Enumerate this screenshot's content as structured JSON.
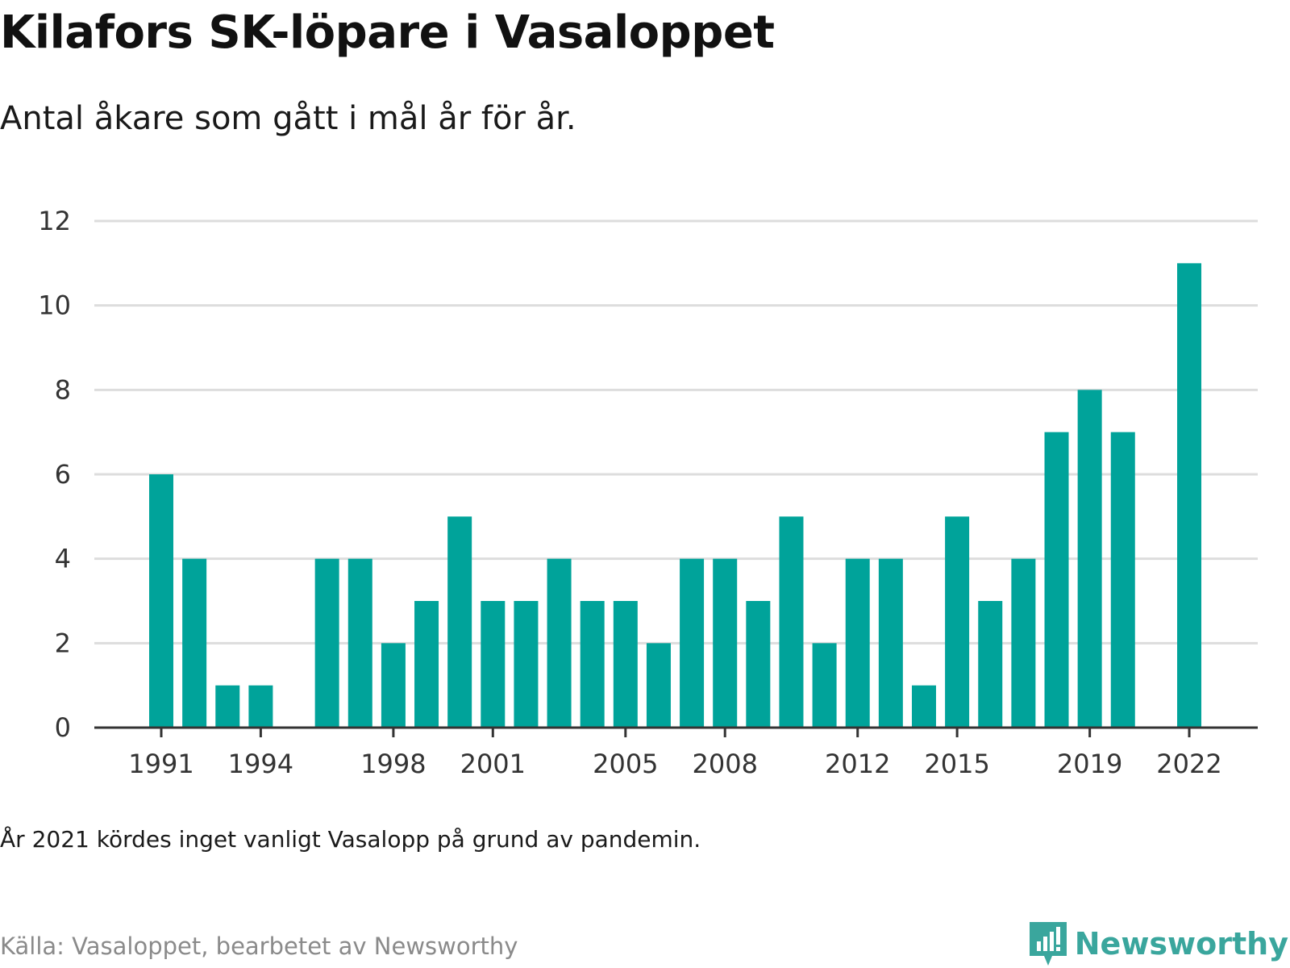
{
  "header": {
    "title": "Kilafors SK-löpare i Vasaloppet",
    "subtitle": "Antal åkare som gått i mål år för år."
  },
  "footer": {
    "note": "År 2021 kördes inget vanligt Vasalopp på grund av pandemin.",
    "source": "Källa: Vasaloppet, bearbetet av Newsworthy",
    "logo_text": "Newsworthy"
  },
  "colors": {
    "bar": "#00a39a",
    "grid": "#dddddd",
    "axis": "#333333",
    "logo": "#3aa69d"
  },
  "icons": {
    "logo": "bar-chart-speech-bubble-icon"
  },
  "chart_data": {
    "type": "bar",
    "title": "",
    "xlabel": "",
    "ylabel": "",
    "ylim": [
      0,
      12
    ],
    "yticks": [
      0,
      2,
      4,
      6,
      8,
      10,
      12
    ],
    "xticks": [
      "1991",
      "1994",
      "1998",
      "2001",
      "2005",
      "2008",
      "2012",
      "2015",
      "2019",
      "2022"
    ],
    "grid": true,
    "categories": [
      1991,
      1992,
      1993,
      1994,
      1995,
      1996,
      1997,
      1998,
      1999,
      2000,
      2001,
      2002,
      2003,
      2004,
      2005,
      2006,
      2007,
      2008,
      2009,
      2010,
      2011,
      2012,
      2013,
      2014,
      2015,
      2016,
      2017,
      2018,
      2019,
      2020,
      2021,
      2022
    ],
    "values": [
      6,
      4,
      1,
      1,
      0,
      4,
      4,
      2,
      3,
      5,
      3,
      3,
      4,
      3,
      3,
      2,
      4,
      4,
      3,
      5,
      2,
      4,
      4,
      1,
      5,
      3,
      4,
      7,
      8,
      7,
      0,
      11
    ]
  }
}
